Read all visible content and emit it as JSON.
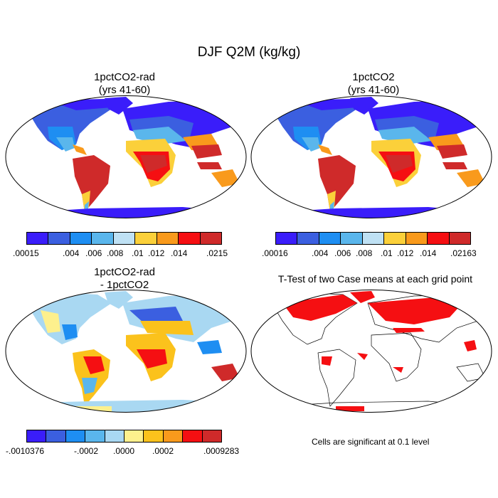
{
  "title": "DJF Q2M (kg/kg)",
  "panels": [
    {
      "title_line1": "1pctCO2-rad",
      "title_line2": "(yrs 41-60)"
    },
    {
      "title_line1": "1pctCO2",
      "title_line2": "(yrs 41-60)"
    },
    {
      "title_line1": "1pctCO2-rad",
      "title_line2": "- 1pctCO2"
    },
    {
      "title_line1": "T-Test of two Case means at each grid point",
      "title_line2": ""
    }
  ],
  "colorbars": [
    {
      "colors": [
        "#3a1dfa",
        "#3b5fe0",
        "#1e8ef2",
        "#5ab6ec",
        "#bfe1f4",
        "#fbd03a",
        "#f99a1c",
        "#f50f12",
        "#cf2a2a"
      ],
      "labels": [
        ".00015",
        ".004",
        ".006",
        ".008",
        ".01",
        ".012",
        ".014",
        ".0215"
      ]
    },
    {
      "colors": [
        "#3a1dfa",
        "#3b5fe0",
        "#1e8ef2",
        "#5ab6ec",
        "#bfe1f4",
        "#fbd03a",
        "#f99a1c",
        "#f50f12",
        "#cf2a2a"
      ],
      "labels": [
        ".00016",
        ".004",
        ".006",
        ".008",
        ".01",
        ".012",
        ".014",
        ".02163"
      ]
    },
    {
      "colors": [
        "#3a1dfa",
        "#3b5fe0",
        "#1e8ef2",
        "#5ab6ec",
        "#a9d8f2",
        "#fdf08d",
        "#fbc21c",
        "#f99a1c",
        "#f50f12",
        "#cf2a2a"
      ],
      "labels": [
        "-.0010376",
        "-.0002",
        ".0000",
        ".0002",
        ".0009283"
      ]
    }
  ],
  "note": "Cells are significant at 0.1 level",
  "colors": {
    "cold": "#3a1dfa",
    "cool": "#1e8ef2",
    "mid": "#bfe1f4",
    "warm": "#fbd03a",
    "hot": "#cf2a2a",
    "sig": "#f50f12"
  }
}
